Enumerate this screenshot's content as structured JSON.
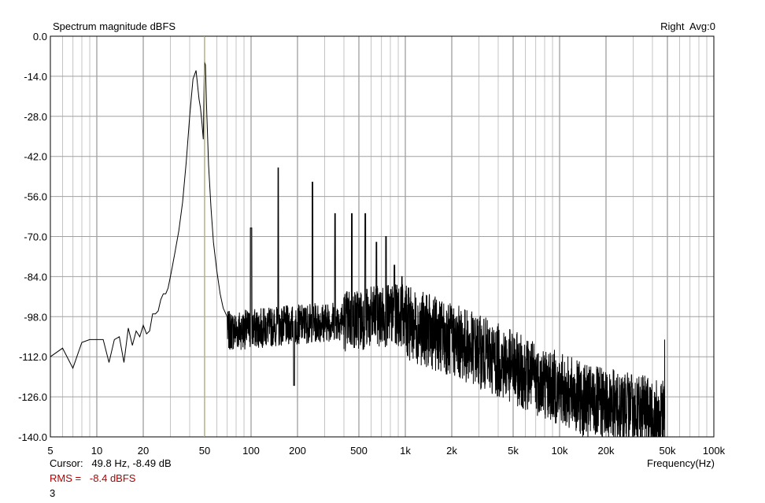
{
  "chart_data": {
    "type": "line",
    "title": "Spectrum magnitude dBFS",
    "channel_label": "Right  Avg:0",
    "xlabel": "Frequency(Hz)",
    "x_scale": "log",
    "xlim": [
      5,
      100000
    ],
    "ylim": [
      -140,
      0
    ],
    "y_ticks": [
      0,
      -14,
      -28,
      -42,
      -56,
      -70,
      -84,
      -98,
      -112,
      -126,
      -140
    ],
    "y_tick_labels": [
      "0.0",
      "-14.0",
      "-28.0",
      "-42.0",
      "-56.0",
      "-70.0",
      "-84.0",
      "-98.0",
      "-112.0",
      "-126.0",
      "-140.0"
    ],
    "x_ticks": [
      5,
      10,
      20,
      50,
      100,
      200,
      500,
      1000,
      2000,
      5000,
      10000,
      20000,
      50000,
      100000
    ],
    "x_tick_labels": [
      "5",
      "10",
      "20",
      "50",
      "100",
      "200",
      "500",
      "1k",
      "2k",
      "5k",
      "10k",
      "20k",
      "50k",
      "100k"
    ],
    "grid": true,
    "cursor_frequency": 49.8,
    "trace_color": "#000000",
    "cursor_color": "#c8c800",
    "rms_color": "#b40000",
    "series": [
      {
        "x": [
          5,
          6,
          7,
          8,
          9,
          10,
          11,
          12,
          13,
          14,
          15,
          16,
          17,
          18,
          19,
          20,
          21,
          22,
          23,
          24,
          25,
          26,
          27,
          28,
          29,
          30,
          31,
          32,
          34,
          36,
          38,
          40,
          42,
          44,
          46,
          47,
          48,
          49,
          49.8,
          50.6,
          51.5,
          53,
          55,
          57,
          60,
          63,
          66,
          70
        ],
        "y": [
          -112,
          -109,
          -116,
          -107,
          -106,
          -106,
          -106,
          -114,
          -106,
          -105,
          -114,
          -102,
          -108,
          -103,
          -105,
          -101,
          -104,
          -103,
          -97,
          -97,
          -96,
          -92,
          -90,
          -90,
          -88,
          -84,
          -80,
          -76,
          -68,
          -58,
          -44,
          -28,
          -15,
          -12,
          -22,
          -25,
          -30,
          -36,
          -9,
          -10,
          -25,
          -45,
          -60,
          -72,
          -82,
          -90,
          -95,
          -98
        ]
      }
    ],
    "annotations": {
      "cursor": "Cursor:   49.8 Hz, -8.49 dB",
      "rms": "RMS =   -8.4 dBFS",
      "index": "3"
    }
  }
}
